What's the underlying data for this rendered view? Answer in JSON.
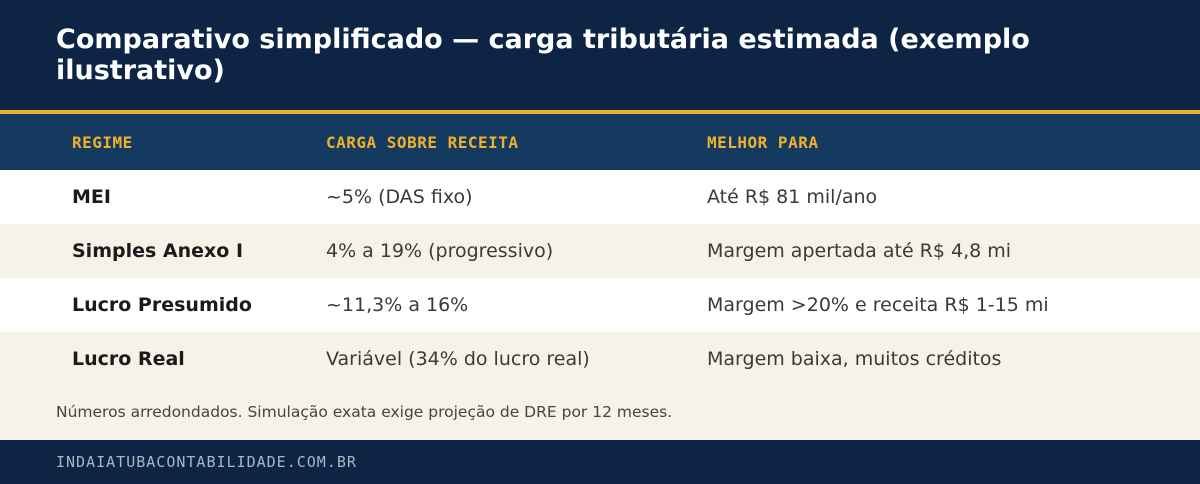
{
  "title": "Comparativo simplificado — carga tributária estimada (exemplo ilustrativo)",
  "table": {
    "headers": [
      "REGIME",
      "CARGA SOBRE RECEITA",
      "MELHOR PARA"
    ],
    "rows": [
      {
        "regime": "MEI",
        "carga": "~5% (DAS fixo)",
        "melhor": "Até R$ 81 mil/ano"
      },
      {
        "regime": "Simples Anexo I",
        "carga": "4% a 19% (progressivo)",
        "melhor": "Margem apertada até R$ 4,8 mi"
      },
      {
        "regime": "Lucro Presumido",
        "carga": "~11,3% a 16%",
        "melhor": "Margem >20% e receita R$ 1-15 mi"
      },
      {
        "regime": "Lucro Real",
        "carga": "Variável (34% do lucro real)",
        "melhor": "Margem baixa, muitos créditos"
      }
    ]
  },
  "note": "Números arredondados. Simulação exata exige projeção de DRE por 12 meses.",
  "footer": "INDAIATUBACONTABILIDADE.COM.BR",
  "colors": {
    "header_bg": "#0d2444",
    "table_header_bg": "#153a60",
    "accent": "#efb12b",
    "row_alt": "#f7f2e8"
  }
}
